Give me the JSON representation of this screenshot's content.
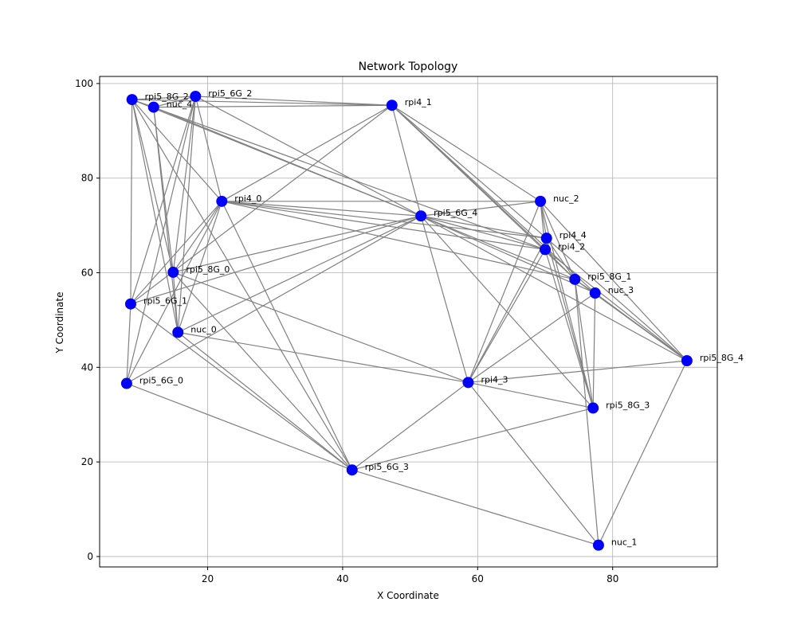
{
  "chart_data": {
    "type": "scatter",
    "title": "Network Topology",
    "xlabel": "X Coordinate",
    "ylabel": "Y Coordinate",
    "xlim": [
      4,
      95.5
    ],
    "ylim": [
      -2.2,
      101.5
    ],
    "xticks": [
      20,
      40,
      60,
      80
    ],
    "yticks": [
      0,
      20,
      40,
      60,
      80,
      100
    ],
    "grid": true,
    "colors": {
      "node": "#0000ff",
      "edge": "#808080",
      "grid": "#b0b0b0",
      "axis": "#000000"
    },
    "nodes": [
      {
        "name": "rpi5_8G_2",
        "x": 8.8,
        "y": 96.6
      },
      {
        "name": "nuc_4",
        "x": 12.0,
        "y": 95.0
      },
      {
        "name": "rpi5_6G_2",
        "x": 18.2,
        "y": 97.3
      },
      {
        "name": "rpi4_1",
        "x": 47.3,
        "y": 95.4
      },
      {
        "name": "rpi4_0",
        "x": 22.1,
        "y": 75.1
      },
      {
        "name": "rpi5_6G_4",
        "x": 51.6,
        "y": 72.0
      },
      {
        "name": "nuc_2",
        "x": 69.3,
        "y": 75.1
      },
      {
        "name": "rpi4_4",
        "x": 70.2,
        "y": 67.3
      },
      {
        "name": "rpi4_2",
        "x": 70.0,
        "y": 64.9
      },
      {
        "name": "rpi5_8G_0",
        "x": 14.9,
        "y": 60.1
      },
      {
        "name": "rpi5_8G_1",
        "x": 74.4,
        "y": 58.6
      },
      {
        "name": "nuc_3",
        "x": 77.4,
        "y": 55.7
      },
      {
        "name": "rpi5_6G_1",
        "x": 8.6,
        "y": 53.4
      },
      {
        "name": "nuc_0",
        "x": 15.6,
        "y": 47.4
      },
      {
        "name": "rpi5_8G_4",
        "x": 91.0,
        "y": 41.4
      },
      {
        "name": "rpi5_6G_0",
        "x": 8.0,
        "y": 36.6
      },
      {
        "name": "rpi4_3",
        "x": 58.6,
        "y": 36.8
      },
      {
        "name": "rpi5_8G_3",
        "x": 77.1,
        "y": 31.4
      },
      {
        "name": "rpi5_6G_3",
        "x": 41.4,
        "y": 18.3
      },
      {
        "name": "nuc_1",
        "x": 77.9,
        "y": 2.4
      }
    ],
    "edges": [
      [
        "rpi5_8G_2",
        "rpi5_6G_2"
      ],
      [
        "rpi5_8G_2",
        "nuc_4"
      ],
      [
        "rpi5_8G_2",
        "rpi4_1"
      ],
      [
        "rpi5_8G_2",
        "rpi4_0"
      ],
      [
        "rpi5_8G_2",
        "rpi5_6G_4"
      ],
      [
        "rpi5_8G_2",
        "rpi4_2"
      ],
      [
        "rpi5_8G_2",
        "rpi5_8G_0"
      ],
      [
        "rpi5_8G_2",
        "nuc_0"
      ],
      [
        "rpi5_8G_2",
        "rpi5_6G_1"
      ],
      [
        "rpi5_8G_2",
        "rpi5_6G_3"
      ],
      [
        "nuc_4",
        "rpi4_1"
      ],
      [
        "nuc_4",
        "rpi5_6G_2"
      ],
      [
        "nuc_4",
        "rpi5_8G_0"
      ],
      [
        "nuc_4",
        "nuc_0"
      ],
      [
        "nuc_4",
        "rpi5_6G_4"
      ],
      [
        "rpi5_6G_2",
        "rpi4_1"
      ],
      [
        "rpi5_6G_2",
        "rpi4_0"
      ],
      [
        "rpi5_6G_2",
        "rpi5_6G_4"
      ],
      [
        "rpi5_6G_2",
        "rpi5_8G_0"
      ],
      [
        "rpi5_6G_2",
        "nuc_0"
      ],
      [
        "rpi5_6G_2",
        "rpi5_6G_1"
      ],
      [
        "rpi5_6G_2",
        "rpi5_6G_0"
      ],
      [
        "rpi4_1",
        "rpi4_0"
      ],
      [
        "rpi4_1",
        "rpi5_6G_4"
      ],
      [
        "rpi4_1",
        "nuc_2"
      ],
      [
        "rpi4_1",
        "rpi4_4"
      ],
      [
        "rpi4_1",
        "rpi4_2"
      ],
      [
        "rpi4_1",
        "rpi5_8G_1"
      ],
      [
        "rpi4_1",
        "nuc_3"
      ],
      [
        "rpi4_1",
        "rpi5_6G_1"
      ],
      [
        "rpi4_0",
        "nuc_2"
      ],
      [
        "rpi4_0",
        "rpi5_6G_4"
      ],
      [
        "rpi4_0",
        "rpi4_4"
      ],
      [
        "rpi4_0",
        "rpi4_2"
      ],
      [
        "rpi4_0",
        "rpi5_8G_1"
      ],
      [
        "rpi4_0",
        "rpi5_8G_0"
      ],
      [
        "rpi4_0",
        "rpi5_6G_1"
      ],
      [
        "rpi4_0",
        "nuc_0"
      ],
      [
        "rpi4_0",
        "rpi5_6G_0"
      ],
      [
        "rpi4_0",
        "rpi5_6G_3"
      ],
      [
        "rpi5_6G_4",
        "nuc_2"
      ],
      [
        "rpi5_6G_4",
        "rpi4_4"
      ],
      [
        "rpi5_6G_4",
        "rpi4_2"
      ],
      [
        "rpi5_6G_4",
        "rpi5_8G_1"
      ],
      [
        "rpi5_6G_4",
        "nuc_3"
      ],
      [
        "rpi5_6G_4",
        "rpi5_8G_4"
      ],
      [
        "rpi5_6G_4",
        "rpi5_8G_0"
      ],
      [
        "rpi5_6G_4",
        "rpi5_6G_1"
      ],
      [
        "rpi5_6G_4",
        "nuc_0"
      ],
      [
        "rpi5_6G_4",
        "rpi5_6G_0"
      ],
      [
        "rpi5_6G_4",
        "rpi4_3"
      ],
      [
        "rpi5_6G_4",
        "rpi5_8G_3"
      ],
      [
        "nuc_2",
        "rpi4_4"
      ],
      [
        "nuc_2",
        "rpi4_2"
      ],
      [
        "nuc_2",
        "rpi5_8G_1"
      ],
      [
        "nuc_2",
        "rpi5_8G_4"
      ],
      [
        "nuc_2",
        "rpi4_3"
      ],
      [
        "nuc_2",
        "rpi5_8G_3"
      ],
      [
        "rpi4_4",
        "rpi5_8G_1"
      ],
      [
        "rpi4_4",
        "rpi5_8G_4"
      ],
      [
        "rpi4_4",
        "rpi5_8G_3"
      ],
      [
        "rpi4_4",
        "rpi4_3"
      ],
      [
        "rpi4_2",
        "rpi5_8G_1"
      ],
      [
        "rpi4_2",
        "rpi5_8G_3"
      ],
      [
        "rpi4_2",
        "rpi4_3"
      ],
      [
        "rpi4_2",
        "rpi5_8G_4"
      ],
      [
        "rpi5_8G_1",
        "rpi5_8G_4"
      ],
      [
        "rpi5_8G_1",
        "nuc_3"
      ],
      [
        "rpi5_8G_1",
        "rpi5_8G_3"
      ],
      [
        "rpi5_8G_1",
        "nuc_1"
      ],
      [
        "nuc_3",
        "rpi4_3"
      ],
      [
        "nuc_3",
        "rpi5_8G_3"
      ],
      [
        "nuc_3",
        "rpi5_8G_4"
      ],
      [
        "rpi5_8G_0",
        "nuc_0"
      ],
      [
        "rpi5_8G_0",
        "rpi5_6G_3"
      ],
      [
        "rpi5_8G_0",
        "rpi4_3"
      ],
      [
        "rpi5_6G_1",
        "rpi5_6G_0"
      ],
      [
        "rpi5_6G_1",
        "rpi5_6G_3"
      ],
      [
        "nuc_0",
        "rpi4_3"
      ],
      [
        "nuc_0",
        "rpi5_6G_3"
      ],
      [
        "rpi5_8G_4",
        "rpi4_3"
      ],
      [
        "rpi5_8G_4",
        "nuc_1"
      ],
      [
        "rpi5_6G_0",
        "rpi5_6G_3"
      ],
      [
        "rpi4_3",
        "rpi5_8G_3"
      ],
      [
        "rpi4_3",
        "rpi5_6G_3"
      ],
      [
        "rpi4_3",
        "nuc_1"
      ],
      [
        "rpi5_6G_3",
        "rpi5_8G_3"
      ],
      [
        "rpi5_6G_3",
        "nuc_1"
      ]
    ]
  }
}
